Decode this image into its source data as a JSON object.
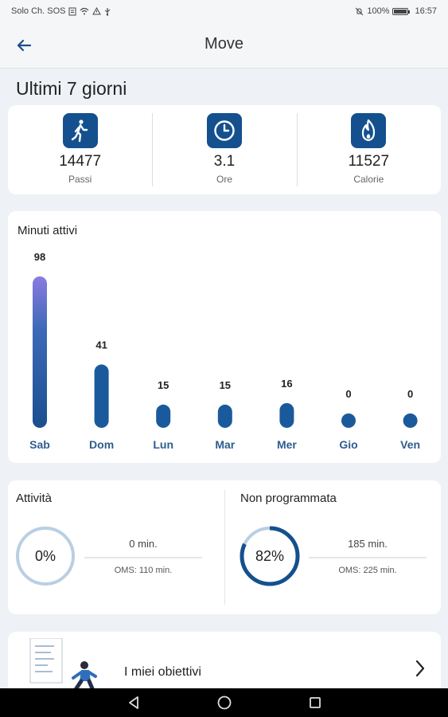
{
  "status_bar": {
    "carrier": "Solo Ch. SOS",
    "battery": "100%",
    "time": "16:57"
  },
  "app_bar": {
    "title": "Move"
  },
  "summary": {
    "title": "Ultimi 7 giorni",
    "stats": [
      {
        "icon": "walking-icon",
        "value": "14477",
        "label": "Passi"
      },
      {
        "icon": "clock-icon",
        "value": "3.1",
        "label": "Ore"
      },
      {
        "icon": "flame-icon",
        "value": "11527",
        "label": "Calorie"
      }
    ]
  },
  "chart_data": {
    "type": "bar",
    "title": "Minuti attivi",
    "categories": [
      "Sab",
      "Dom",
      "Lun",
      "Mar",
      "Mer",
      "Gio",
      "Ven"
    ],
    "values": [
      98,
      41,
      15,
      15,
      16,
      0,
      0
    ],
    "ylim": [
      0,
      98
    ],
    "grid": false,
    "colors": {
      "bar": "#1a5a9c",
      "bar_top_highlight": "#8a7be0",
      "label": "#2e5c8e"
    }
  },
  "activity": {
    "left": {
      "title": "Attività",
      "percent_label": "0%",
      "percent": 0,
      "minutes": "0 min.",
      "oms": "OMS: 110 min."
    },
    "right": {
      "title": "Non programmata",
      "percent_label": "82%",
      "percent": 82,
      "minutes": "185 min.",
      "oms": "OMS: 225 min."
    }
  },
  "goals": {
    "label": "I miei obiettivi"
  },
  "colors": {
    "accent": "#14508e",
    "ring_track": "#b9cfe3"
  }
}
